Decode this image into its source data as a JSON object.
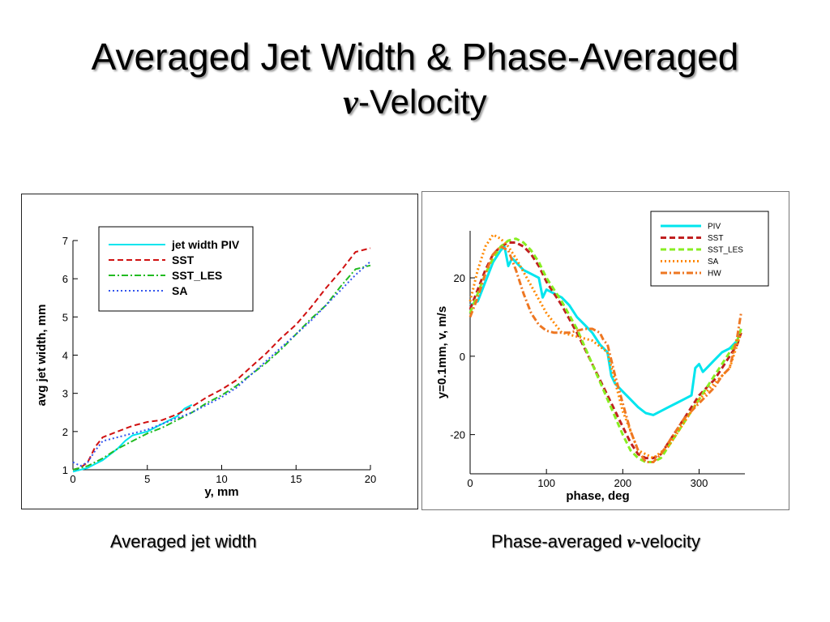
{
  "slide": {
    "title_line1": "Averaged Jet Width & Phase-Averaged",
    "title_v": "v",
    "title_line2_rest": "-Velocity",
    "caption_left": "Averaged jet width",
    "caption_right_prefix": "Phase-averaged ",
    "caption_right_v": "v",
    "caption_right_suffix": "-velocity"
  },
  "chart_data": [
    {
      "type": "line",
      "title": "",
      "xlabel": "y, mm",
      "ylabel": "avg jet width, mm",
      "xlim": [
        0,
        20
      ],
      "ylim": [
        1,
        7
      ],
      "xticks": [
        0,
        5,
        10,
        15,
        20
      ],
      "yticks": [
        1,
        2,
        3,
        4,
        5,
        6,
        7
      ],
      "grid": false,
      "legend_position": "top-left",
      "series": [
        {
          "name": "jet width PIV",
          "color": "#00e5ee",
          "dash": "solid",
          "x": [
            0,
            0.5,
            1,
            1.5,
            2,
            2.5,
            3,
            3.5,
            4,
            5,
            6,
            7,
            7.5,
            8
          ],
          "y": [
            0.95,
            1.0,
            1.05,
            1.15,
            1.25,
            1.4,
            1.55,
            1.75,
            1.9,
            2.0,
            2.2,
            2.4,
            2.6,
            2.7
          ]
        },
        {
          "name": "SST",
          "color": "#d01010",
          "dash": "dashed",
          "x": [
            0,
            0.5,
            1,
            1.5,
            2,
            3,
            4,
            5,
            6,
            7,
            8,
            9,
            10,
            11,
            12,
            13,
            14,
            15,
            16,
            17,
            18,
            19,
            20
          ],
          "y": [
            1.0,
            1.05,
            1.2,
            1.6,
            1.85,
            2.0,
            2.15,
            2.25,
            2.3,
            2.45,
            2.65,
            2.9,
            3.1,
            3.35,
            3.7,
            4.05,
            4.45,
            4.8,
            5.25,
            5.75,
            6.2,
            6.7,
            6.8
          ]
        },
        {
          "name": "SST_LES",
          "color": "#22bb22",
          "dash": "dashdot",
          "x": [
            0,
            1,
            2,
            3,
            4,
            5,
            6,
            7,
            8,
            9,
            10,
            11,
            12,
            13,
            14,
            15,
            16,
            17,
            18,
            19,
            20
          ],
          "y": [
            1.0,
            1.1,
            1.3,
            1.55,
            1.75,
            1.95,
            2.1,
            2.3,
            2.5,
            2.75,
            2.95,
            3.2,
            3.5,
            3.8,
            4.15,
            4.55,
            4.95,
            5.3,
            5.8,
            6.25,
            6.35
          ]
        },
        {
          "name": "SA",
          "color": "#3355ee",
          "dash": "dotted",
          "x": [
            0,
            0.5,
            1,
            1.5,
            2,
            3,
            4,
            5,
            6,
            7,
            8,
            9,
            10,
            11,
            12,
            13,
            14,
            15,
            16,
            17,
            18,
            19,
            20
          ],
          "y": [
            1.2,
            1.1,
            1.2,
            1.5,
            1.75,
            1.85,
            1.95,
            2.05,
            2.2,
            2.35,
            2.5,
            2.7,
            2.9,
            3.15,
            3.5,
            3.85,
            4.2,
            4.55,
            4.9,
            5.3,
            5.7,
            6.1,
            6.45
          ]
        }
      ]
    },
    {
      "type": "line",
      "title": "",
      "xlabel": "phase, deg",
      "ylabel": "y=0.1mm, v, m/s",
      "xlim": [
        0,
        360
      ],
      "ylim": [
        -30,
        32
      ],
      "xticks": [
        0,
        100,
        200,
        300
      ],
      "yticks": [
        -20,
        0,
        20
      ],
      "grid": false,
      "legend_position": "top-right",
      "series": [
        {
          "name": "PIV",
          "color": "#00e5ee",
          "dash": "solid",
          "x": [
            0,
            10,
            20,
            30,
            40,
            45,
            50,
            55,
            60,
            70,
            80,
            90,
            95,
            100,
            110,
            120,
            130,
            140,
            150,
            160,
            170,
            180,
            185,
            190,
            200,
            210,
            220,
            230,
            240,
            250,
            260,
            270,
            280,
            290,
            295,
            300,
            305,
            310,
            320,
            330,
            340,
            350,
            355
          ],
          "y": [
            13,
            14,
            19,
            24,
            27,
            28,
            23,
            25,
            24,
            22,
            21,
            20,
            15,
            17,
            16,
            15,
            13,
            10,
            8,
            6,
            3,
            1,
            -5,
            -7,
            -9,
            -11,
            -13,
            -14.5,
            -15,
            -14,
            -13,
            -12,
            -11,
            -10,
            -3,
            -2,
            -4,
            -3,
            -1,
            1,
            2,
            4,
            7
          ]
        },
        {
          "name": "SST",
          "color": "#c02020",
          "dash": "dashed",
          "x": [
            0,
            10,
            20,
            30,
            40,
            50,
            60,
            70,
            80,
            90,
            100,
            120,
            140,
            160,
            180,
            200,
            210,
            220,
            230,
            240,
            250,
            260,
            270,
            280,
            290,
            300,
            310,
            320,
            330,
            340,
            350,
            355
          ],
          "y": [
            12,
            17,
            22,
            26,
            28,
            29,
            29,
            28,
            26,
            23,
            19,
            13,
            6,
            -2,
            -10,
            -18,
            -22,
            -25,
            -26,
            -26,
            -25,
            -22,
            -19,
            -16,
            -13,
            -10,
            -8,
            -6,
            -3,
            0,
            3,
            6
          ]
        },
        {
          "name": "SST_LES",
          "color": "#88ee22",
          "dash": "dashed",
          "x": [
            0,
            10,
            20,
            30,
            40,
            50,
            60,
            70,
            80,
            90,
            100,
            120,
            140,
            160,
            180,
            200,
            210,
            220,
            230,
            240,
            250,
            260,
            270,
            280,
            290,
            300,
            310,
            320,
            330,
            340,
            350,
            355
          ],
          "y": [
            11,
            16,
            21,
            25,
            28,
            29.5,
            30,
            29,
            27,
            24,
            20,
            14,
            7,
            -2,
            -11,
            -20,
            -24,
            -26,
            -27,
            -27,
            -26,
            -23,
            -20,
            -17,
            -14,
            -11,
            -8,
            -5,
            -2,
            1,
            4,
            7
          ]
        },
        {
          "name": "SA",
          "color": "#ff8800",
          "dash": "dotted",
          "x": [
            0,
            10,
            20,
            30,
            40,
            50,
            60,
            80,
            100,
            120,
            140,
            160,
            180,
            200,
            220,
            240,
            260,
            280,
            300,
            320,
            340,
            355
          ],
          "y": [
            14,
            22,
            28,
            31,
            30,
            28,
            25,
            18,
            11,
            6,
            5,
            4,
            1,
            -14,
            -24,
            -26,
            -23,
            -17,
            -11,
            -7,
            -3,
            6
          ]
        },
        {
          "name": "HW",
          "color": "#ee7722",
          "dash": "dashdot",
          "x": [
            0,
            10,
            20,
            30,
            40,
            50,
            60,
            70,
            80,
            90,
            100,
            110,
            120,
            130,
            140,
            150,
            160,
            170,
            175,
            180,
            190,
            200,
            210,
            220,
            230,
            240,
            250,
            260,
            270,
            280,
            290,
            300,
            310,
            320,
            330,
            340,
            350,
            355
          ],
          "y": [
            10,
            15,
            21,
            26,
            28,
            27,
            22,
            16,
            11,
            8,
            6.5,
            6,
            6,
            6,
            6.5,
            7,
            7,
            6,
            4,
            3,
            -5,
            -12,
            -19,
            -24,
            -27,
            -27,
            -25,
            -22,
            -19,
            -16,
            -14,
            -12,
            -10,
            -8,
            -5,
            -3,
            5,
            11
          ]
        }
      ]
    }
  ]
}
